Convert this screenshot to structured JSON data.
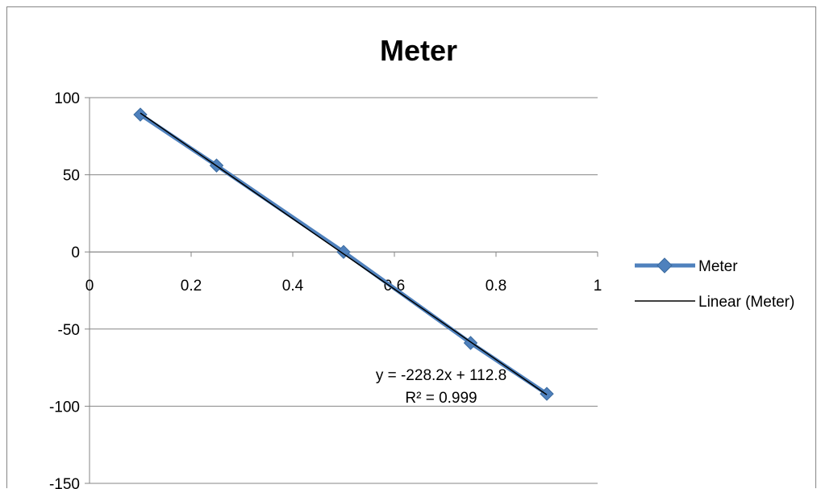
{
  "chart_data": {
    "type": "scatter",
    "title": "Meter",
    "xlabel": "",
    "ylabel": "",
    "xlim": [
      0,
      1
    ],
    "ylim": [
      -150,
      100
    ],
    "x_ticks": [
      "0",
      "0.2",
      "0.4",
      "0.6",
      "0.8",
      "1"
    ],
    "y_ticks": [
      "100",
      "50",
      "0",
      "-50",
      "-100",
      "-150"
    ],
    "grid": "horizontal",
    "legend_position": "right",
    "series": [
      {
        "name": "Meter",
        "color": "#4F81BD",
        "marker": "diamond",
        "x": [
          0.1,
          0.25,
          0.5,
          0.75,
          0.9
        ],
        "y": [
          89,
          56,
          0,
          -59,
          -92
        ]
      }
    ],
    "trendline": {
      "name": "Linear (Meter)",
      "color": "#000000",
      "slope": -228.2,
      "intercept": 112.8,
      "x_range": [
        0.1,
        0.9
      ],
      "equation": "y = -228.2x + 112.8",
      "r_squared": "R² = 0.999"
    }
  }
}
